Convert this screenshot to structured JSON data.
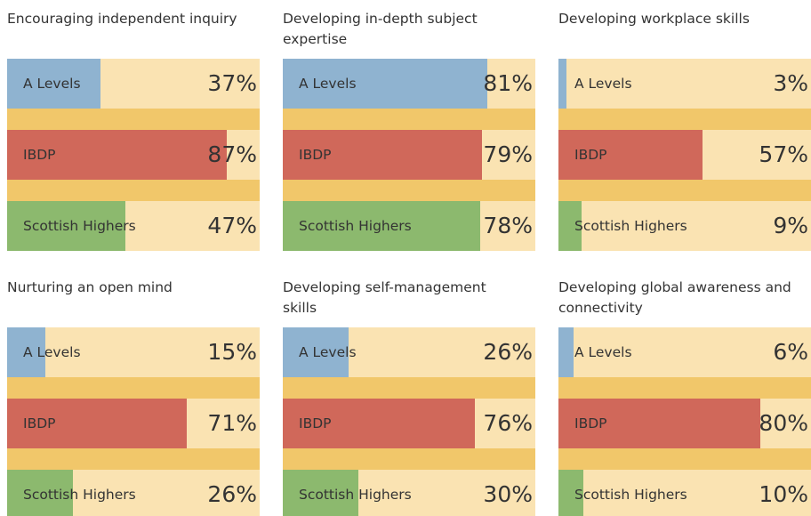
{
  "chart_data": [
    {
      "type": "bar",
      "title": "Encouraging independent inquiry",
      "categories": [
        "A Levels",
        "IBDP",
        "Scottish Highers"
      ],
      "values": [
        37,
        87,
        47
      ],
      "value_labels": [
        "37%",
        "87%",
        "47%"
      ],
      "colors": [
        "#8fb3d0",
        "#d0685a",
        "#8cb96e"
      ],
      "xlim": [
        0,
        100
      ]
    },
    {
      "type": "bar",
      "title": "Developing in-depth subject expertise",
      "categories": [
        "A Levels",
        "IBDP",
        "Scottish Highers"
      ],
      "values": [
        81,
        79,
        78
      ],
      "value_labels": [
        "81%",
        "79%",
        "78%"
      ],
      "colors": [
        "#8fb3d0",
        "#d0685a",
        "#8cb96e"
      ],
      "xlim": [
        0,
        100
      ]
    },
    {
      "type": "bar",
      "title": "Developing workplace skills",
      "categories": [
        "A Levels",
        "IBDP",
        "Scottish Highers"
      ],
      "values": [
        3,
        57,
        9
      ],
      "value_labels": [
        "3%",
        "57%",
        "9%"
      ],
      "colors": [
        "#8fb3d0",
        "#d0685a",
        "#8cb96e"
      ],
      "xlim": [
        0,
        100
      ]
    },
    {
      "type": "bar",
      "title": "Nurturing an open mind",
      "categories": [
        "A Levels",
        "IBDP",
        "Scottish Highers"
      ],
      "values": [
        15,
        71,
        26
      ],
      "value_labels": [
        "15%",
        "71%",
        "26%"
      ],
      "colors": [
        "#8fb3d0",
        "#d0685a",
        "#8cb96e"
      ],
      "xlim": [
        0,
        100
      ]
    },
    {
      "type": "bar",
      "title": "Developing self-management skills",
      "categories": [
        "A Levels",
        "IBDP",
        "Scottish Highers"
      ],
      "values": [
        26,
        76,
        30
      ],
      "value_labels": [
        "26%",
        "76%",
        "30%"
      ],
      "colors": [
        "#8fb3d0",
        "#d0685a",
        "#8cb96e"
      ],
      "xlim": [
        0,
        100
      ]
    },
    {
      "type": "bar",
      "title": "Developing global awareness and connectivity",
      "categories": [
        "A Levels",
        "IBDP",
        "Scottish Highers"
      ],
      "values": [
        6,
        80,
        10
      ],
      "value_labels": [
        "6%",
        "80%",
        "10%"
      ],
      "colors": [
        "#8fb3d0",
        "#d0685a",
        "#8cb96e"
      ],
      "xlim": [
        0,
        100
      ]
    }
  ]
}
